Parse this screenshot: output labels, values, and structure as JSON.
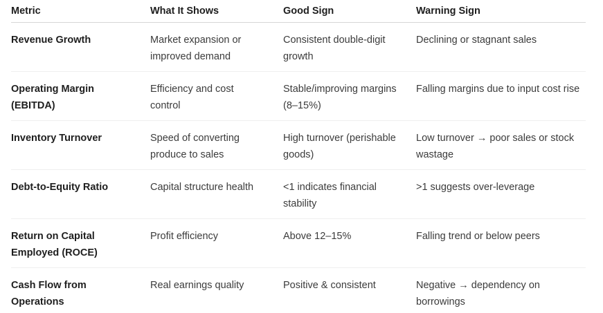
{
  "table": {
    "columns": [
      {
        "key": "metric",
        "label": "Metric"
      },
      {
        "key": "shows",
        "label": "What It Shows"
      },
      {
        "key": "good",
        "label": "Good Sign"
      },
      {
        "key": "warning",
        "label": "Warning Sign"
      }
    ],
    "rows": [
      {
        "metric": "Revenue Growth",
        "shows": "Market expansion or improved demand",
        "good": "Consistent double-digit growth",
        "warning": "Declining or stagnant sales"
      },
      {
        "metric": "Operating Margin (EBITDA)",
        "shows": "Efficiency and cost control",
        "good": "Stable/improving margins (8–15%)",
        "warning": "Falling margins due to input cost rise"
      },
      {
        "metric": "Inventory Turnover",
        "shows": "Speed of converting produce to sales",
        "good": "High turnover (perishable goods)",
        "warning": "Low turnover → poor sales or stock wastage"
      },
      {
        "metric": "Debt-to-Equity Ratio",
        "shows": "Capital structure health",
        "good": "<1 indicates financial stability",
        "warning": ">1 suggests over-leverage"
      },
      {
        "metric": "Return on Capital Employed (ROCE)",
        "shows": "Profit efficiency",
        "good": "Above 12–15%",
        "warning": "Falling trend or below peers"
      },
      {
        "metric": "Cash Flow from Operations",
        "shows": "Real earnings quality",
        "good": "Positive & consistent",
        "warning": "Negative → dependency on borrowings"
      }
    ]
  }
}
